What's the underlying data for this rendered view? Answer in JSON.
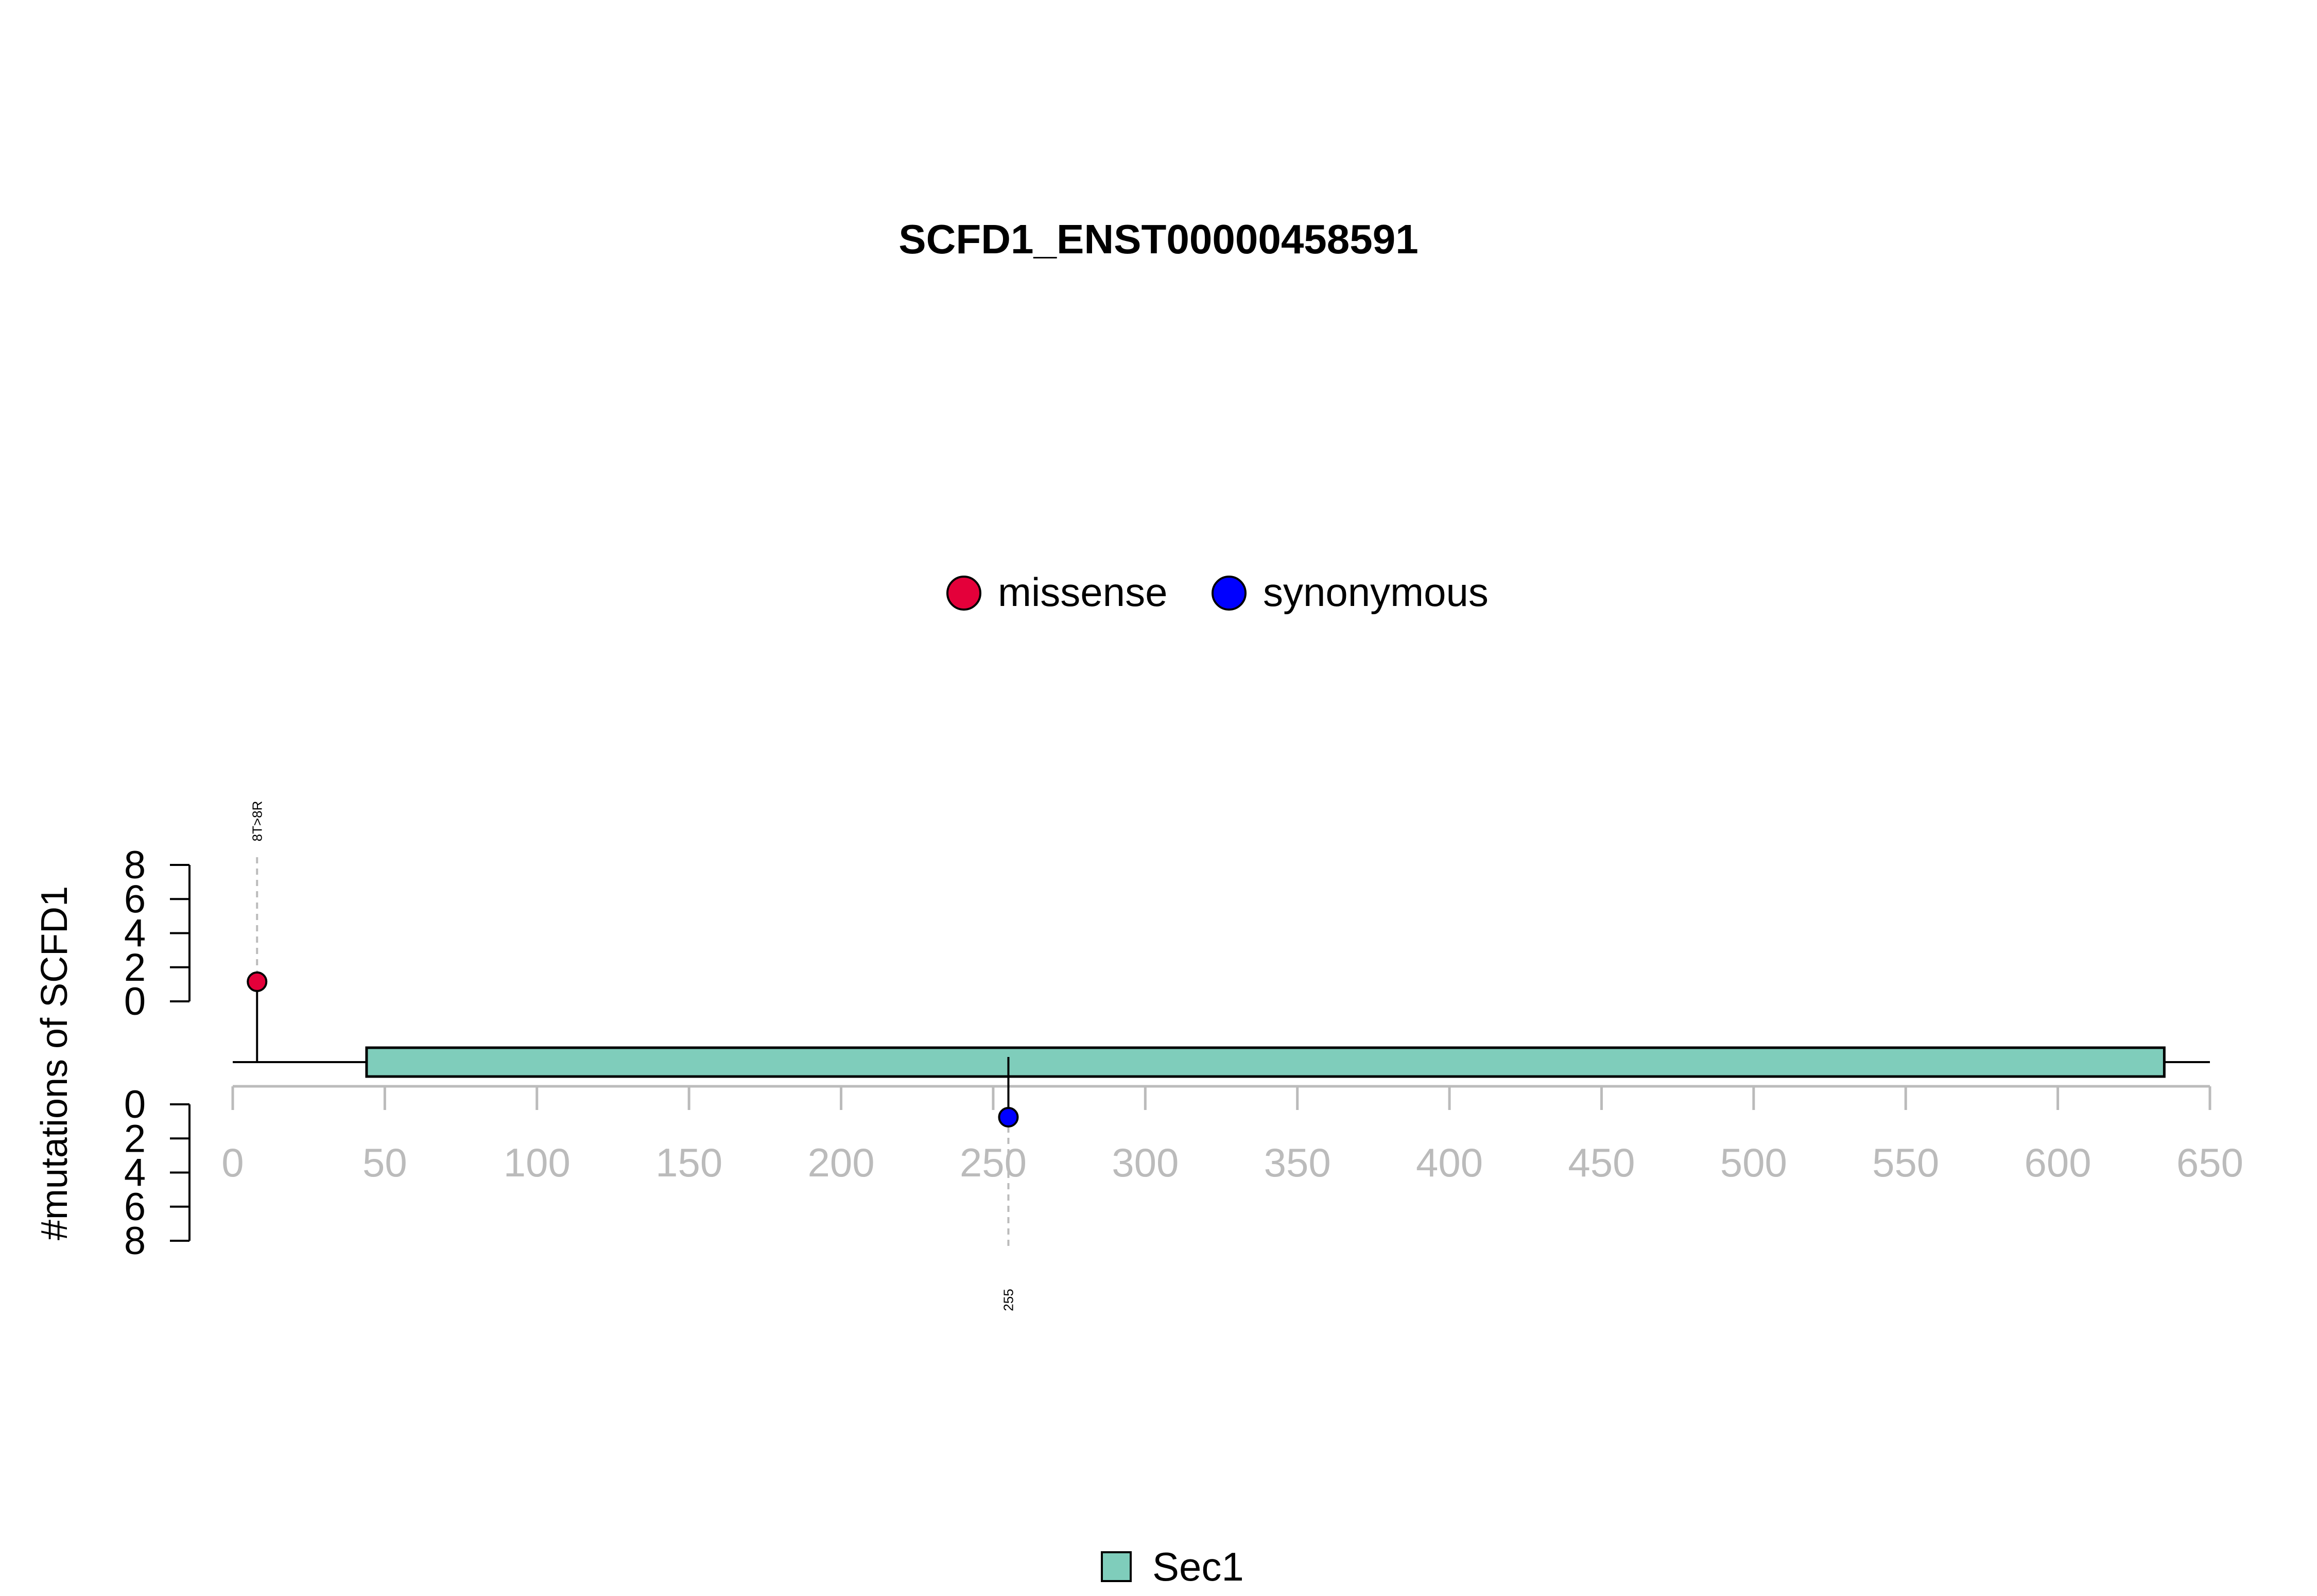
{
  "chart_data": {
    "type": "lollipop",
    "title": "SCFD1_ENST00000458591",
    "ylabel": "#mutations of SCFD1",
    "xlim": [
      0,
      650
    ],
    "x_ticks": [
      0,
      50,
      100,
      150,
      200,
      250,
      300,
      350,
      400,
      450,
      500,
      550,
      600,
      650
    ],
    "y_ticks_top": [
      0,
      2,
      4,
      6,
      8
    ],
    "y_ticks_bottom": [
      0,
      2,
      4,
      6,
      8
    ],
    "legend_top": {
      "placement": "top-center",
      "items": [
        {
          "label": "missense",
          "color": "#e4003a"
        },
        {
          "label": "synonymous",
          "color": "#0000ff"
        }
      ]
    },
    "legend_bottom": {
      "placement": "bottom-center",
      "items": [
        {
          "label": "Sec1",
          "color": "#7fcdbb"
        }
      ]
    },
    "domains": [
      {
        "name": "Sec1",
        "start": 44,
        "end": 635,
        "color": "#7fcdbb"
      }
    ],
    "mutations": [
      {
        "position": 8,
        "count": 1,
        "type": "missense",
        "side": "top",
        "label": "8T>8R",
        "color": "#e4003a"
      },
      {
        "position": 255,
        "count": 1,
        "type": "synonymous",
        "side": "bottom",
        "label": "255",
        "color": "#0000ff"
      }
    ],
    "axis_color": "#bbbbbb"
  }
}
